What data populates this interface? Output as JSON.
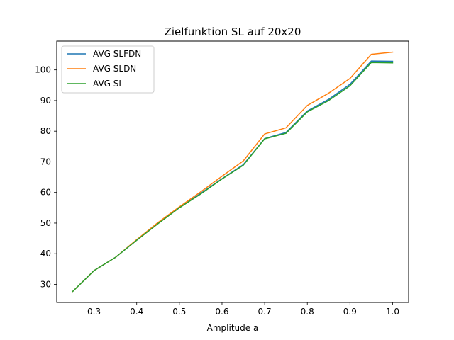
{
  "chart_data": {
    "type": "line",
    "title": "Zielfunktion SL auf 20x20",
    "xlabel": "Amplitude a",
    "ylabel": "",
    "xlim": [
      0.2125,
      1.0375
    ],
    "ylim": [
      24.1,
      109.4
    ],
    "xticks": [
      0.3,
      0.4,
      0.5,
      0.6,
      0.7,
      0.8,
      0.9,
      1.0
    ],
    "xtick_labels": [
      "0.3",
      "0.4",
      "0.5",
      "0.6",
      "0.7",
      "0.8",
      "0.9",
      "1.0"
    ],
    "yticks": [
      30,
      40,
      50,
      60,
      70,
      80,
      90,
      100
    ],
    "ytick_labels": [
      "30",
      "40",
      "50",
      "60",
      "70",
      "80",
      "90",
      "100"
    ],
    "grid": false,
    "legend_position": "top-left",
    "x": [
      0.25,
      0.3,
      0.35,
      0.4,
      0.45,
      0.5,
      0.55,
      0.6,
      0.65,
      0.7,
      0.75,
      0.8,
      0.85,
      0.9,
      0.95,
      1.0
    ],
    "series": [
      {
        "name": "AVG SLFDN",
        "color": "#1f77b4",
        "values": [
          27.7,
          34.5,
          38.8,
          44.4,
          49.9,
          55.0,
          59.7,
          64.5,
          69.1,
          77.6,
          79.6,
          86.6,
          90.4,
          95.3,
          102.9,
          102.8
        ]
      },
      {
        "name": "AVG SLDN",
        "color": "#ff7f0e",
        "values": [
          27.7,
          34.5,
          38.8,
          44.6,
          50.2,
          55.3,
          60.2,
          65.3,
          70.3,
          79.1,
          81.1,
          88.4,
          92.4,
          97.2,
          105.1,
          105.8
        ]
      },
      {
        "name": "AVG SL",
        "color": "#2ca02c",
        "values": [
          27.7,
          34.5,
          38.8,
          44.4,
          49.8,
          55.0,
          59.5,
          64.4,
          68.9,
          77.5,
          79.3,
          86.3,
          90.0,
          94.8,
          102.4,
          102.3
        ]
      }
    ]
  }
}
